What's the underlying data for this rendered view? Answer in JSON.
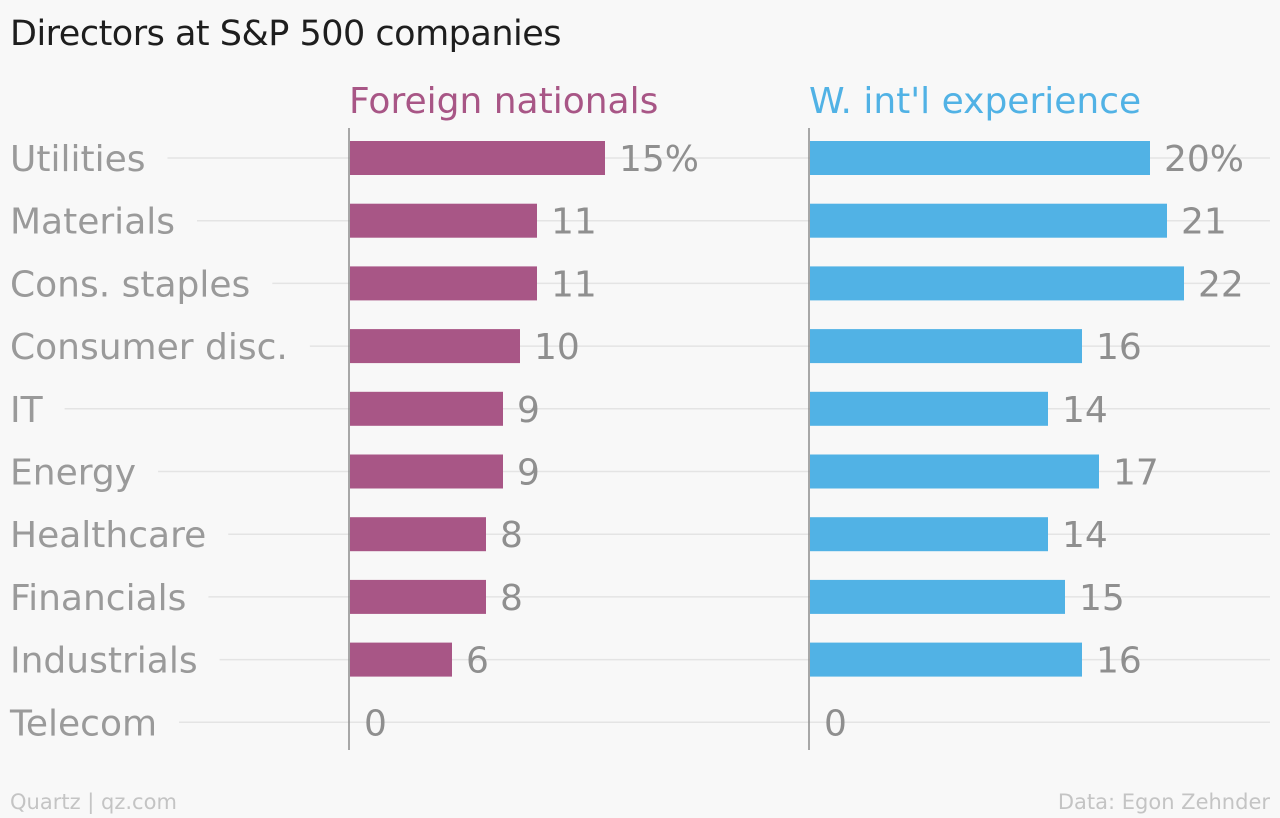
{
  "chart_data": {
    "type": "bar",
    "title": "Directors at S&P 500 companies",
    "categories": [
      "Utilities",
      "Materials",
      "Cons. staples",
      "Consumer disc.",
      "IT",
      "Energy",
      "Healthcare",
      "Financials",
      "Industrials",
      "Telecom"
    ],
    "series": [
      {
        "name": "Foreign nationals",
        "color": "#a85686",
        "values": [
          15,
          11,
          11,
          10,
          9,
          9,
          8,
          8,
          6,
          0
        ],
        "labels": [
          "15%",
          "11",
          "11",
          "10",
          "9",
          "9",
          "8",
          "8",
          "6",
          "0"
        ]
      },
      {
        "name": "W. int'l experience",
        "color": "#51b2e5",
        "values": [
          20,
          21,
          22,
          16,
          14,
          17,
          14,
          15,
          16,
          0
        ],
        "labels": [
          "20%",
          "21",
          "22",
          "16",
          "14",
          "17",
          "14",
          "15",
          "16",
          "0"
        ]
      }
    ],
    "orientation": "horizontal",
    "layout": "small-multiples",
    "xlim": [
      0,
      22
    ],
    "grid": true,
    "legend": "none"
  },
  "footer": {
    "source_left": "Quartz | qz.com",
    "source_right": "Data: Egon Zehnder"
  },
  "colors": {
    "background": "#f8f8f8",
    "title": "#1e1e1e",
    "category_label": "#9a9a9a",
    "value_label": "#8f8f8f",
    "gridline": "#e4e4e4",
    "axis": "#8c8c8c",
    "credit": "#c4c4c4"
  }
}
